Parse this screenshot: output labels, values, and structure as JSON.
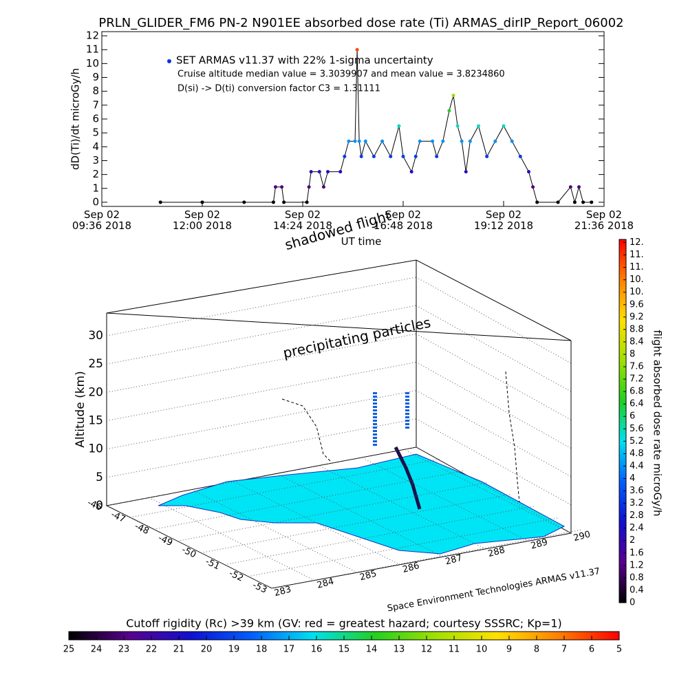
{
  "chart_data": [
    {
      "type": "line",
      "title": "PRLN_GLIDER_FM6 PN-2 N901EE absorbed dose rate (Ti) ARMAS_dirIP_Report_06002",
      "ylabel": "dD(Ti)/dt microGy/h",
      "xlabel": "UT time",
      "legend_label": "SET ARMAS v11.37 with 22% 1-sigma uncertainty",
      "annotations": [
        "Cruise altitude median value = 3.3039907 and mean value = 3.8234860",
        "D(si) -> D(ti) conversion factor C3 = 1.31111"
      ],
      "legend_color": "#1030e0",
      "line_color": "#000000",
      "x": [
        11.0,
        12.0,
        13.0,
        13.7,
        13.75,
        13.9,
        13.95,
        14.5,
        14.55,
        14.6,
        14.8,
        14.9,
        15.0,
        15.3,
        15.4,
        15.5,
        15.65,
        15.7,
        15.75,
        15.8,
        15.9,
        16.1,
        16.3,
        16.5,
        16.7,
        16.8,
        17.0,
        17.1,
        17.2,
        17.5,
        17.6,
        17.75,
        17.9,
        18.0,
        18.1,
        18.2,
        18.3,
        18.4,
        18.6,
        18.8,
        19.0,
        19.2,
        19.4,
        19.6,
        19.8,
        19.9,
        20.0,
        20.5,
        20.8,
        20.9,
        21.0,
        21.1,
        21.3
      ],
      "values": [
        0,
        0,
        0,
        0,
        1.1,
        1.1,
        0,
        0,
        1.1,
        2.2,
        2.2,
        1.1,
        2.2,
        2.2,
        3.3,
        4.4,
        4.4,
        11.0,
        4.4,
        3.3,
        4.4,
        3.3,
        4.4,
        3.3,
        5.5,
        3.3,
        2.2,
        3.3,
        4.4,
        4.4,
        3.3,
        4.4,
        6.6,
        7.7,
        5.5,
        4.4,
        2.2,
        4.4,
        5.5,
        3.3,
        4.4,
        5.5,
        4.4,
        3.3,
        2.2,
        1.1,
        0,
        0,
        1.1,
        0,
        1.1,
        0,
        0
      ],
      "xlim": [
        9.6,
        21.6
      ],
      "xticks": [
        {
          "value": 9.6,
          "label": "Sep 02\n09:36 2018"
        },
        {
          "value": 12.0,
          "label": "Sep 02\n12:00 2018"
        },
        {
          "value": 14.4,
          "label": "Sep 02\n14:24 2018"
        },
        {
          "value": 16.8,
          "label": "Sep 02\n16:48 2018"
        },
        {
          "value": 19.2,
          "label": "Sep 02\n19:12 2018"
        },
        {
          "value": 21.6,
          "label": "Sep 02\n21:36 2018"
        }
      ],
      "ylim": [
        -0.3,
        12.3
      ],
      "yticks": [
        0,
        1,
        2,
        3,
        4,
        5,
        6,
        7,
        8,
        9,
        10,
        11,
        12
      ],
      "colormap": [
        "#000000",
        "#5a0090",
        "#1010d0",
        "#0060ff",
        "#00e0f0",
        "#20d020",
        "#a0e000",
        "#ffe000",
        "#ff8000",
        "#ff0000"
      ]
    },
    {
      "type": "3d",
      "zlabel": "Altitude (km)",
      "zlim": [
        0,
        34
      ],
      "zticks": [
        0,
        5,
        10,
        15,
        20,
        25,
        30
      ],
      "latlim": [
        -46,
        -53
      ],
      "latticks": [
        -46,
        -47,
        -48,
        -49,
        -50,
        -51,
        -52,
        -53
      ],
      "lonlim": [
        283,
        290
      ],
      "lonticks": [
        283,
        284,
        285,
        286,
        287,
        288,
        289,
        290
      ],
      "annotations": [
        "shadowed flight",
        "precipitating particles"
      ],
      "credit": "Space Environment Technologies ARMAS v11.37",
      "ground_color": "#00e5f5",
      "colorbar": {
        "label": "flight absorbed dose rate microGy/h",
        "lim": [
          0,
          11.7
        ],
        "ticks": [
          0.0,
          0.4,
          0.8,
          1.2,
          1.6,
          2.0,
          2.4,
          2.8,
          3.2,
          3.6,
          4.0,
          4.4,
          4.8,
          5.2,
          5.6,
          6.0,
          6.4,
          6.8,
          7.2,
          7.6,
          8.0,
          8.4,
          8.8,
          9.2,
          9.6,
          {
            "value": 10.0,
            "label": "10."
          },
          {
            "value": 10.4,
            "label": "10."
          },
          {
            "value": 10.8,
            "label": "11."
          },
          {
            "value": 11.2,
            "label": "11."
          },
          {
            "value": 11.6,
            "label": "12."
          }
        ]
      },
      "colorbar2": {
        "label": "Cutoff rigidity (Rc) >39 km (GV: red = greatest hazard; courtesy SSSRC; Kp=1)",
        "lim": [
          25,
          5
        ],
        "ticks": [
          25,
          24,
          23,
          22,
          21,
          20,
          19,
          18,
          17,
          16,
          15,
          14,
          13,
          12,
          11,
          10,
          9,
          8,
          7,
          6,
          5
        ]
      }
    }
  ]
}
